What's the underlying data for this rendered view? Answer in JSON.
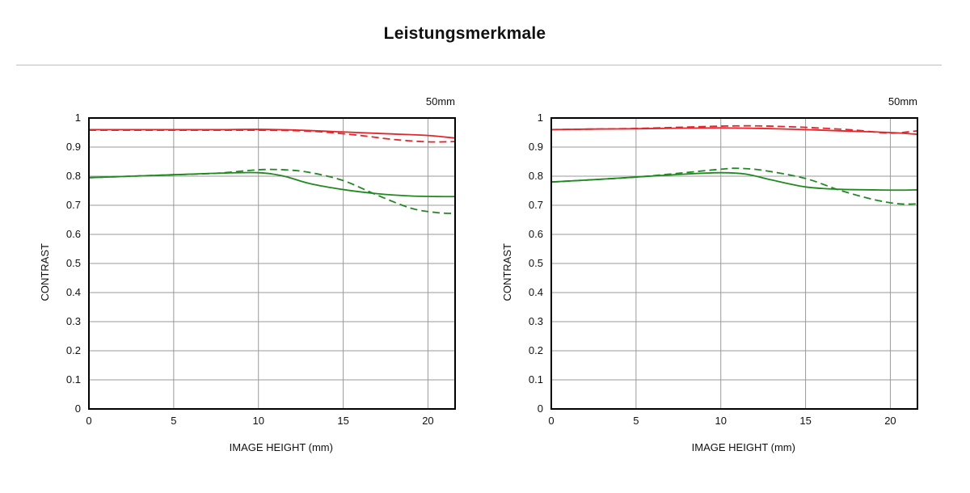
{
  "page": {
    "title": "Leistungsmerkmale"
  },
  "chart_data": [
    {
      "type": "line",
      "annotation": "50mm",
      "xlabel": "IMAGE HEIGHT (mm)",
      "ylabel": "CONTRAST",
      "xlim": [
        0,
        21.6
      ],
      "ylim": [
        0,
        1
      ],
      "xticks": [
        0,
        5,
        10,
        15,
        20
      ],
      "yticks": [
        0,
        0.1,
        0.2,
        0.3,
        0.4,
        0.5,
        0.6,
        0.7,
        0.8,
        0.9,
        1
      ],
      "ytick_labels": [
        "0",
        "0.1",
        "0.2",
        "0.3",
        "0.4",
        "0.5",
        "0.6",
        "0.7",
        "0.8",
        "0.9",
        "1"
      ],
      "grid": true,
      "series": [
        {
          "color": "#e3262b",
          "dash": "solid",
          "x": [
            0,
            2.5,
            5,
            7.5,
            10,
            12.5,
            15,
            17.5,
            20,
            21.6
          ],
          "y": [
            0.96,
            0.96,
            0.96,
            0.96,
            0.961,
            0.958,
            0.952,
            0.946,
            0.94,
            0.931
          ]
        },
        {
          "color": "#e3262b",
          "dash": "dashed",
          "x": [
            0,
            2.5,
            5,
            7.5,
            10,
            12.5,
            14,
            16,
            18,
            20,
            21.6
          ],
          "y": [
            0.958,
            0.958,
            0.958,
            0.958,
            0.958,
            0.956,
            0.951,
            0.94,
            0.926,
            0.918,
            0.919
          ]
        },
        {
          "color": "#1f8a1f",
          "dash": "solid",
          "x": [
            0,
            2.5,
            5,
            7.5,
            10,
            11.5,
            13,
            15,
            17,
            19,
            20.5,
            21.6
          ],
          "y": [
            0.795,
            0.8,
            0.805,
            0.81,
            0.812,
            0.8,
            0.775,
            0.754,
            0.74,
            0.732,
            0.73,
            0.73
          ]
        },
        {
          "color": "#1f8a1f",
          "dash": "dashed",
          "x": [
            0,
            2.5,
            5,
            7.5,
            10,
            11.5,
            13,
            15,
            17,
            19,
            20.5,
            21.6
          ],
          "y": [
            0.795,
            0.8,
            0.805,
            0.81,
            0.822,
            0.822,
            0.813,
            0.785,
            0.735,
            0.69,
            0.675,
            0.672
          ]
        }
      ]
    },
    {
      "type": "line",
      "annotation": "50mm",
      "xlabel": "IMAGE HEIGHT (mm)",
      "ylabel": "CONTRAST",
      "xlim": [
        0,
        21.6
      ],
      "ylim": [
        0,
        1
      ],
      "xticks": [
        0,
        5,
        10,
        15,
        20
      ],
      "yticks": [
        0,
        0.1,
        0.2,
        0.3,
        0.4,
        0.5,
        0.6,
        0.7,
        0.8,
        0.9,
        1
      ],
      "ytick_labels": [
        "0",
        "0.1",
        "0.2",
        "0.3",
        "0.4",
        "0.5",
        "0.6",
        "0.7",
        "0.8",
        "0.9",
        "1"
      ],
      "grid": true,
      "series": [
        {
          "color": "#e3262b",
          "dash": "solid",
          "x": [
            0,
            2.5,
            5,
            7.5,
            10,
            12.5,
            15,
            17.5,
            20,
            21.6
          ],
          "y": [
            0.96,
            0.962,
            0.963,
            0.965,
            0.966,
            0.964,
            0.96,
            0.955,
            0.95,
            0.944
          ]
        },
        {
          "color": "#e3262b",
          "dash": "dashed",
          "x": [
            0,
            2.5,
            5,
            7.5,
            10,
            12,
            14,
            16,
            18,
            20,
            21.6
          ],
          "y": [
            0.96,
            0.962,
            0.964,
            0.968,
            0.972,
            0.973,
            0.97,
            0.965,
            0.958,
            0.948,
            0.956
          ]
        },
        {
          "color": "#1f8a1f",
          "dash": "solid",
          "x": [
            0,
            2.5,
            5,
            7.5,
            10,
            11.5,
            13,
            15,
            17,
            19,
            20.5,
            21.6
          ],
          "y": [
            0.78,
            0.788,
            0.797,
            0.806,
            0.812,
            0.807,
            0.787,
            0.763,
            0.755,
            0.753,
            0.752,
            0.753
          ]
        },
        {
          "color": "#1f8a1f",
          "dash": "dashed",
          "x": [
            0,
            2.5,
            5,
            7.5,
            10,
            11,
            12.5,
            15,
            17,
            19,
            20.5,
            21.6
          ],
          "y": [
            0.78,
            0.788,
            0.797,
            0.81,
            0.824,
            0.827,
            0.82,
            0.792,
            0.752,
            0.72,
            0.705,
            0.705
          ]
        }
      ]
    }
  ]
}
